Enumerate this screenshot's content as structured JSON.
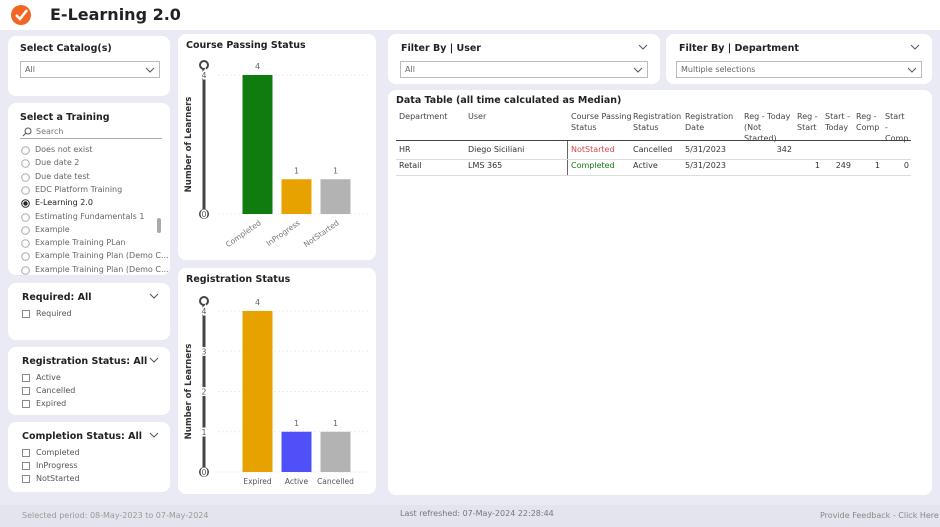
{
  "header": {
    "title": "E-Learning 2.0"
  },
  "slicers": {
    "catalog": {
      "label": "Select Catalog(s)",
      "value": "All"
    },
    "training": {
      "label": "Select a Training",
      "search": "Search",
      "items": [
        "Does not exist",
        "Due date 2",
        "Due date test",
        "EDC Platform Training",
        "E-Learning 2.0",
        "Estimating Fundamentals 1",
        "Example",
        "Example Training PLan",
        "Example Training Plan (Demo C...",
        "Example Training Plan (Demo C..."
      ],
      "selected_item": "E-Learning 2.0"
    },
    "required": {
      "label": "Required: All",
      "options": [
        "Required"
      ]
    },
    "registration": {
      "label": "Registration Status: All",
      "options": [
        "Active",
        "Cancelled",
        "Expired"
      ]
    },
    "completion": {
      "label": "Completion Status: All",
      "options": [
        "Completed",
        "InProgress",
        "NotStarted"
      ]
    },
    "user": {
      "label": "Filter By | User",
      "value": "All"
    },
    "department": {
      "label": "Filter By | Department",
      "value": "Multiple selections"
    }
  },
  "charts": [
    {
      "type": "bar",
      "title": "Course Passing Status",
      "y_label": "Number of Learners",
      "categories": [
        "Completed",
        "InProgress",
        "NotStarted"
      ],
      "values": [
        4,
        1,
        1
      ],
      "colors": [
        "#107c10",
        "#e8a200",
        "#b3b3b3"
      ],
      "ylim": [
        0,
        4
      ],
      "yticks": [
        0,
        4
      ],
      "rotate_labels": true
    },
    {
      "type": "bar",
      "title": "Registration Status",
      "y_label": "Number of Learners",
      "categories": [
        "Expired",
        "Active",
        "Cancelled"
      ],
      "values": [
        4,
        1,
        1
      ],
      "colors": [
        "#e8a200",
        "#5050f8",
        "#b3b3b3"
      ],
      "ylim": [
        0,
        4
      ],
      "yticks": [
        0,
        1,
        2,
        3,
        4
      ],
      "rotate_labels": false
    }
  ],
  "table": {
    "title": "Data Table (all time calculated as Median)",
    "columns": [
      "Department",
      "User",
      "Course Passing Status",
      "Registration Status",
      "Registration Date",
      "Reg - Today (Not Started)",
      "Reg - Start",
      "Start - Today",
      "Reg - Comp",
      "Start - Comp"
    ],
    "rows": [
      [
        "HR",
        "Diego Siciliani",
        "NotStarted",
        "Cancelled",
        "5/31/2023",
        342,
        null,
        null,
        null,
        null
      ],
      [
        "Retail",
        "LMS 365",
        "Completed",
        "Active",
        "5/31/2023",
        null,
        1,
        249,
        1,
        0
      ]
    ],
    "status_colors": {
      "NotStarted": "#d64550",
      "Completed": "#107c10"
    }
  },
  "footer": {
    "period": "Selected period: 08-May-2023 to 07-May-2024",
    "refreshed": "Last refreshed: 07-May-2024 22:28:44",
    "feedback": "Provide Feedback - Click Here"
  }
}
